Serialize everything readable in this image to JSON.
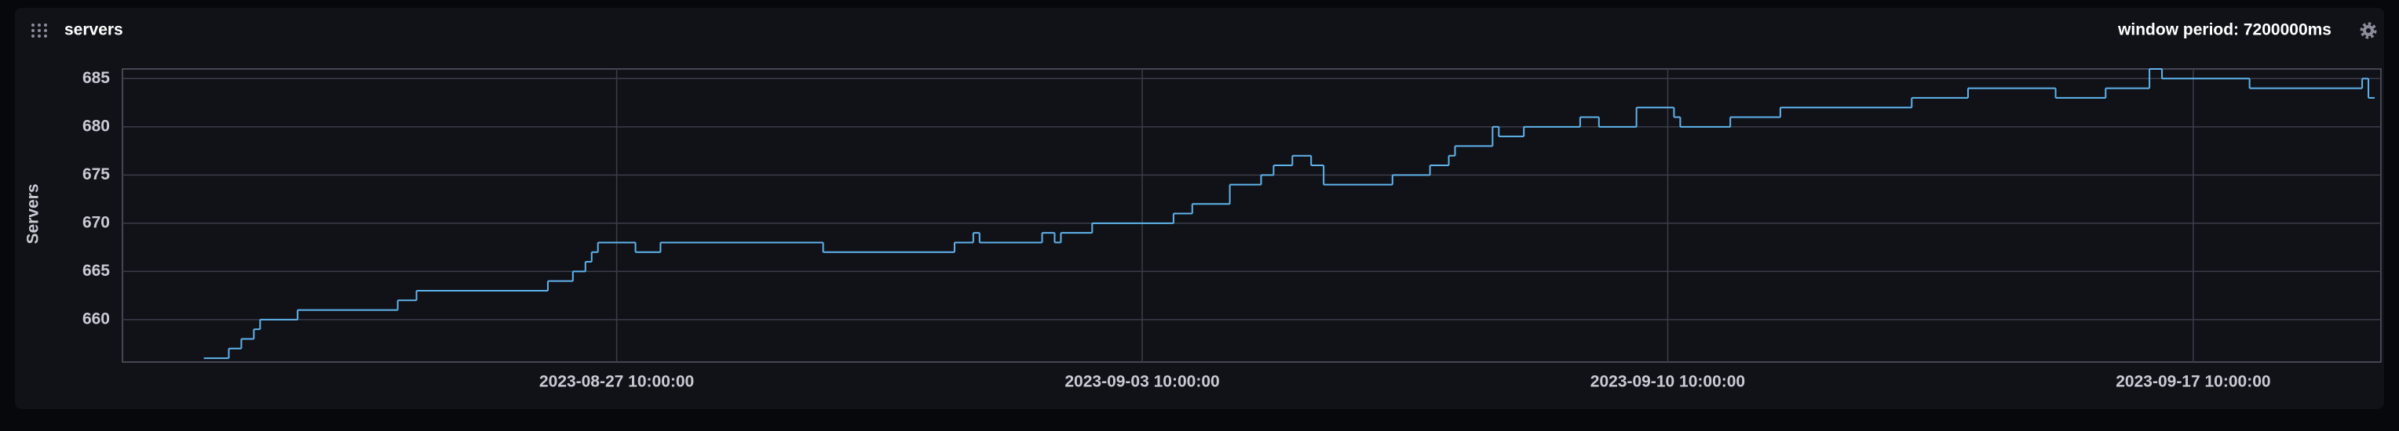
{
  "chart_data": {
    "type": "step",
    "title": "servers",
    "annotation": "window period: 7200000ms",
    "y_label": "Servers",
    "color": "#5fb4ec",
    "grid": true,
    "ylim": [
      655.6,
      686
    ],
    "yticks": [
      660,
      665,
      670,
      675,
      680,
      685
    ],
    "xlim": [
      "2023-08-20 20:00:00",
      "2023-09-19 22:00:00"
    ],
    "xticks": [
      "2023-08-27 10:00:00",
      "2023-09-03 10:00:00",
      "2023-09-10 10:00:00",
      "2023-09-17 10:00:00"
    ],
    "x": [
      "2023-08-21 22:00:00",
      "2023-08-22 06:00:00",
      "2023-08-22 10:00:00",
      "2023-08-22 14:00:00",
      "2023-08-22 16:00:00",
      "2023-08-23 04:00:00",
      "2023-08-24 12:00:00",
      "2023-08-24 18:00:00",
      "2023-08-26 12:00:00",
      "2023-08-26 20:00:00",
      "2023-08-27 00:00:00",
      "2023-08-27 02:00:00",
      "2023-08-27 04:00:00",
      "2023-08-27 16:00:00",
      "2023-08-28 00:00:00",
      "2023-08-30 04:00:00",
      "2023-08-31 22:00:00",
      "2023-09-01 04:00:00",
      "2023-09-01 06:00:00",
      "2023-09-02 02:00:00",
      "2023-09-02 06:00:00",
      "2023-09-02 08:00:00",
      "2023-09-02 18:00:00",
      "2023-09-03 20:00:00",
      "2023-09-04 02:00:00",
      "2023-09-04 14:00:00",
      "2023-09-05 00:00:00",
      "2023-09-05 04:00:00",
      "2023-09-05 10:00:00",
      "2023-09-05 16:00:00",
      "2023-09-05 20:00:00",
      "2023-09-06 18:00:00",
      "2023-09-07 06:00:00",
      "2023-09-07 12:00:00",
      "2023-09-07 14:00:00",
      "2023-09-08 02:00:00",
      "2023-09-08 04:00:00",
      "2023-09-08 12:00:00",
      "2023-09-09 06:00:00",
      "2023-09-09 12:00:00",
      "2023-09-10 00:00:00",
      "2023-09-10 12:00:00",
      "2023-09-10 14:00:00",
      "2023-09-11 06:00:00",
      "2023-09-11 22:00:00",
      "2023-09-13 16:00:00",
      "2023-09-14 10:00:00",
      "2023-09-15 14:00:00",
      "2023-09-16 06:00:00",
      "2023-09-16 20:00:00",
      "2023-09-17 00:00:00",
      "2023-09-18 04:00:00",
      "2023-09-19 16:00:00",
      "2023-09-19 18:00:00"
    ],
    "values": [
      656,
      657,
      658,
      659,
      660,
      661,
      662,
      663,
      664,
      665,
      666,
      667,
      668,
      667,
      668,
      667,
      668,
      669,
      668,
      669,
      668,
      669,
      670,
      671,
      672,
      674,
      675,
      676,
      677,
      676,
      674,
      675,
      676,
      677,
      678,
      680,
      679,
      680,
      681,
      680,
      682,
      681,
      680,
      681,
      682,
      683,
      684,
      683,
      684,
      686,
      685,
      684,
      685,
      683
    ]
  }
}
